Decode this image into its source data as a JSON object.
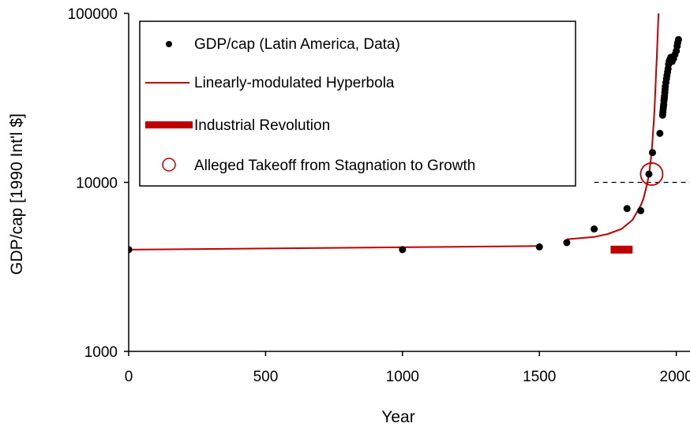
{
  "chart_data": {
    "type": "scatter",
    "xlabel": "Year",
    "ylabel": "GDP/cap [1990 Int'l $]",
    "xlim": [
      0,
      2050
    ],
    "ylim": [
      1000,
      100000
    ],
    "y_scale": "log",
    "x_ticks": [
      "0",
      "500",
      "1000",
      "1500",
      "2000"
    ],
    "x_tick_values": [
      0,
      500,
      1000,
      1500,
      2000
    ],
    "y_ticks": [
      "1000",
      "10000",
      "100000"
    ],
    "y_tick_values": [
      1000,
      10000,
      100000
    ],
    "grid": false,
    "legend_position": "top-left",
    "series": [
      {
        "name": "GDP/cap (Latin America, Data)",
        "kind": "scatter",
        "color": "#000000",
        "x": [
          0,
          1000,
          1500,
          1600,
          1700,
          1820,
          1870,
          1900,
          1913,
          1940,
          1950,
          1951,
          1952,
          1953,
          1954,
          1955,
          1956,
          1957,
          1958,
          1959,
          1960,
          1962,
          1964,
          1966,
          1968,
          1970,
          1972,
          1974,
          1976,
          1978,
          1980,
          1985,
          1990,
          1995,
          2000,
          2003,
          2005,
          2008
        ],
        "y": [
          4000,
          4000,
          4150,
          4400,
          5300,
          7000,
          6800,
          11200,
          15000,
          19500,
          25000,
          26000,
          27000,
          28000,
          29000,
          30500,
          31500,
          32500,
          34000,
          35500,
          37000,
          39000,
          41000,
          43000,
          45000,
          47000,
          50000,
          52000,
          53000,
          53500,
          55000,
          52000,
          54000,
          57000,
          60000,
          64000,
          67000,
          70000
        ]
      },
      {
        "name": "Linearly-modulated Hyperbola",
        "kind": "line",
        "color": "#c00000",
        "segments": [
          {
            "x": [
              0,
              1500
            ],
            "y": [
              4000,
              4200
            ]
          },
          {
            "x": [
              1600,
              1700,
              1750,
              1800,
              1840,
              1870,
              1880,
              1890,
              1900,
              1910,
              1920,
              1930,
              1935
            ],
            "y": [
              4600,
              4750,
              4950,
              5300,
              6000,
              7300,
              8000,
              9300,
              11000,
              15000,
              26000,
              62000,
              100000
            ]
          }
        ]
      },
      {
        "name": "Industrial Revolution",
        "kind": "span",
        "color": "#c00000",
        "x": [
          1760,
          1840
        ],
        "y": 4000
      },
      {
        "name": "Alleged Takeoff from Stagnation to Growth",
        "kind": "marker",
        "color": "#c00000",
        "x": [
          1910
        ],
        "y": [
          11200
        ]
      }
    ],
    "reference_line": {
      "y": 10000,
      "x_from": 1700,
      "x_to": 2050,
      "style": "dashed",
      "color": "#000000"
    },
    "colors": {
      "line": "#c00000",
      "points": "#000000",
      "axes": "#000000"
    }
  }
}
